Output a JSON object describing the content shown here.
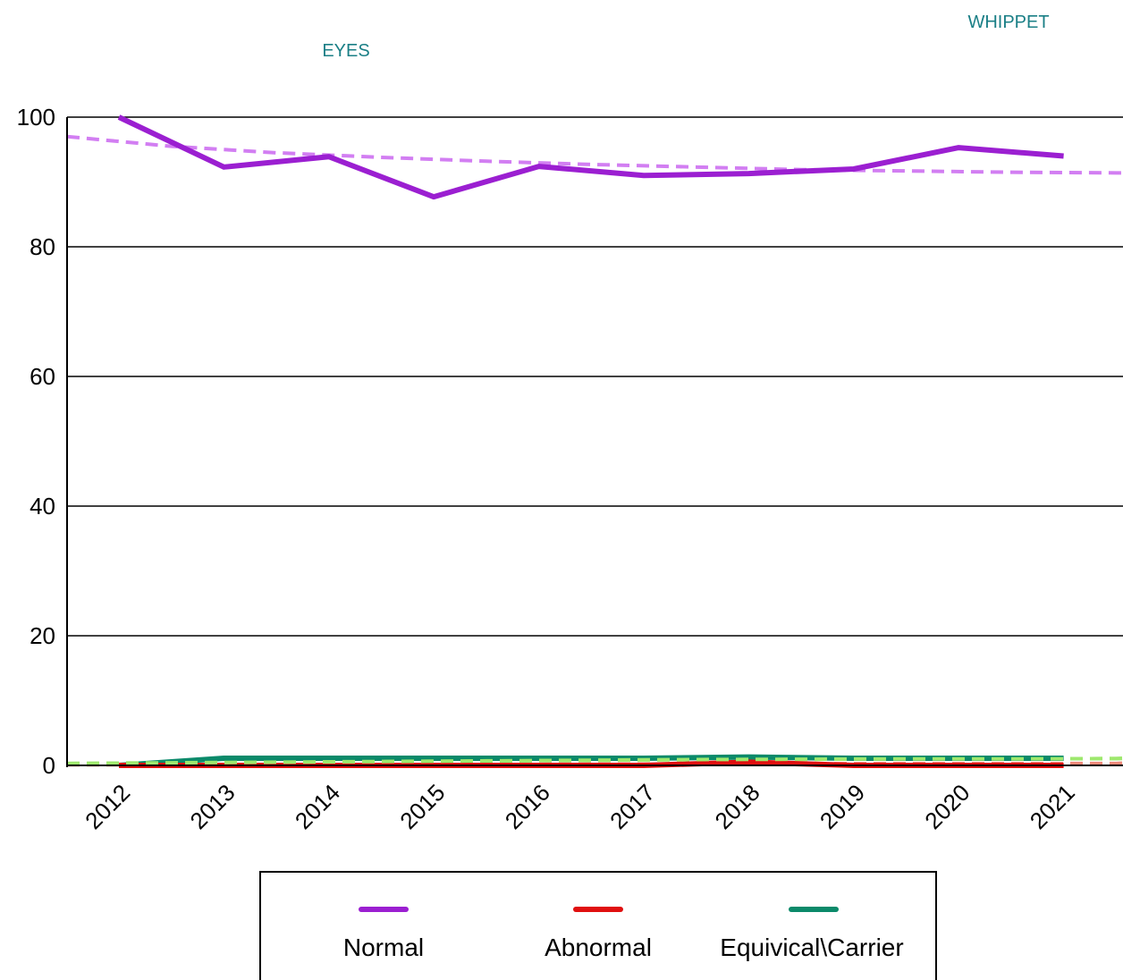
{
  "header": {
    "chart_subject": "EYES",
    "breed": "WHIPPET"
  },
  "colors": {
    "normal": "#9b1fd1",
    "normal_trend": "#d27ef2",
    "abnormal": "#e01010",
    "abnormal_trend": "#f08a7a",
    "equivocal": "#0b8a6a",
    "equivocal_trend": "#9ee86e",
    "teal_text": "#1a7f86",
    "grid": "#000000"
  },
  "chart_data": {
    "type": "line",
    "title": "",
    "xlabel": "",
    "ylabel": "",
    "ylim": [
      0,
      100
    ],
    "yticks": [
      "0",
      "20",
      "40",
      "60",
      "80",
      "100"
    ],
    "categories": [
      "2012",
      "2013",
      "2014",
      "2015",
      "2016",
      "2017",
      "2018",
      "2019",
      "2020",
      "2021"
    ],
    "grid": true,
    "legend_position": "bottom",
    "series": [
      {
        "name": "Normal",
        "style": "solid",
        "values": [
          100,
          92.3,
          93.9,
          87.7,
          92.4,
          91.0,
          91.3,
          92.0,
          95.3,
          94.0
        ]
      },
      {
        "name": "Abnormal",
        "style": "solid",
        "values": [
          0,
          0,
          0,
          0,
          0,
          0,
          0.5,
          0,
          0,
          0
        ]
      },
      {
        "name": "Equivical\\Carrier",
        "style": "solid",
        "values": [
          0,
          1.1,
          1.1,
          1.1,
          1.1,
          1.1,
          1.3,
          1.1,
          1.1,
          1.1
        ]
      }
    ],
    "trendlines": [
      {
        "series": "Normal",
        "style": "dashed",
        "x_range": [
          2011.5,
          2022.5
        ],
        "values": [
          97.0,
          95.5,
          94.5,
          93.8,
          93.2,
          92.7,
          92.3,
          91.9,
          91.7,
          91.5,
          91.4,
          91.4
        ]
      },
      {
        "series": "Abnormal",
        "style": "dashed",
        "x_range": [
          2011.5,
          2022.5
        ],
        "values": [
          0.1,
          0.1,
          0.1,
          0.1,
          0.15,
          0.2,
          0.2,
          0.25,
          0.3,
          0.3,
          0.3,
          0.35
        ]
      },
      {
        "series": "Equivical\\Carrier",
        "style": "dashed",
        "x_range": [
          2011.5,
          2022.5
        ],
        "values": [
          0.3,
          0.4,
          0.5,
          0.6,
          0.7,
          0.8,
          0.9,
          0.95,
          1.0,
          1.0,
          1.05,
          1.1
        ]
      }
    ]
  }
}
